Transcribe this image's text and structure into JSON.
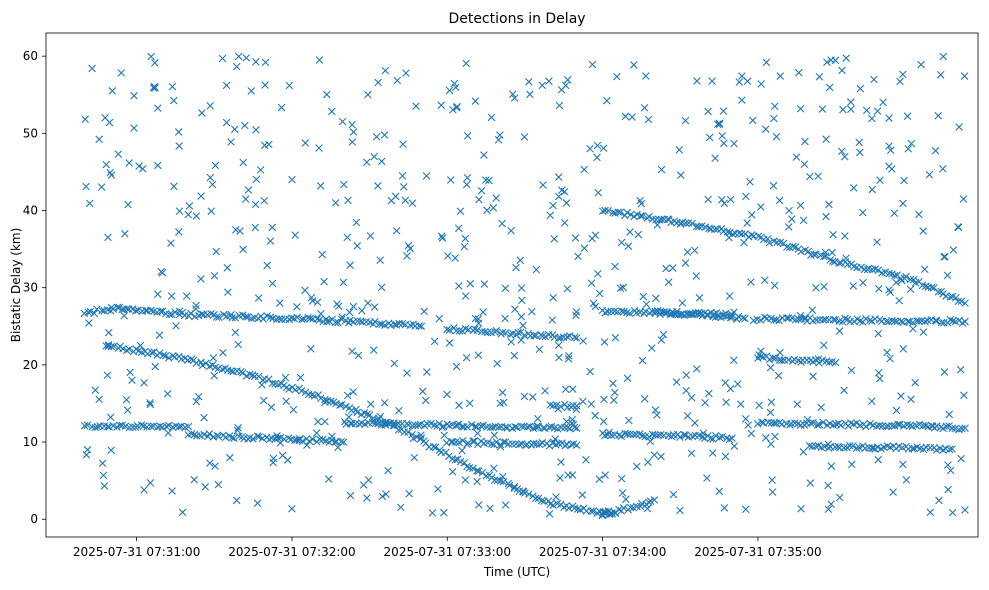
{
  "chart_data": {
    "type": "scatter",
    "title": "Detections in Delay",
    "xlabel": "Time (UTC)",
    "ylabel": "Bistatic Delay (km)",
    "marker": "x",
    "color": "#1f77b4",
    "grid": false,
    "xlim": [
      "07:30:25",
      "07:36:25"
    ],
    "ylim": [
      -2.3,
      63
    ],
    "x_ticks": [
      {
        "t": "07:31:00",
        "label": "2025-07-31 07:31:00"
      },
      {
        "t": "07:32:00",
        "label": "2025-07-31 07:32:00"
      },
      {
        "t": "07:33:00",
        "label": "2025-07-31 07:33:00"
      },
      {
        "t": "07:34:00",
        "label": "2025-07-31 07:34:00"
      },
      {
        "t": "07:35:00",
        "label": "2025-07-31 07:35:00"
      }
    ],
    "y_ticks": [
      0,
      10,
      20,
      30,
      40,
      50,
      60
    ],
    "tracks": [
      {
        "points": [
          [
            "07:30:40",
            26.5
          ],
          [
            "07:30:45",
            27.0
          ],
          [
            "07:30:50",
            27.0
          ]
        ]
      },
      {
        "points": [
          [
            "07:30:48",
            22.5
          ],
          [
            "07:31:15",
            21.0
          ],
          [
            "07:31:40",
            19.0
          ],
          [
            "07:32:10",
            16.0
          ],
          [
            "07:32:40",
            12.0
          ],
          [
            "07:33:10",
            6.5
          ],
          [
            "07:33:40",
            2.0
          ],
          [
            "07:34:00",
            0.8
          ],
          [
            "07:34:05",
            0.8
          ]
        ]
      },
      {
        "points": [
          [
            "07:34:00",
            0.8
          ],
          [
            "07:34:05",
            0.8
          ]
        ]
      },
      {
        "points": [
          [
            "07:34:00",
            0.7
          ],
          [
            "07:34:12",
            1.5
          ],
          [
            "07:34:20",
            2.5
          ]
        ]
      },
      {
        "points": [
          [
            "07:30:50",
            27.5
          ],
          [
            "07:31:20",
            26.5
          ],
          [
            "07:32:00",
            26.0
          ],
          [
            "07:32:30",
            25.5
          ],
          [
            "07:32:50",
            25.0
          ]
        ]
      },
      {
        "points": [
          [
            "07:33:00",
            24.7
          ],
          [
            "07:33:30",
            24.0
          ],
          [
            "07:33:50",
            23.5
          ]
        ]
      },
      {
        "points": [
          [
            "07:34:00",
            40.0
          ],
          [
            "07:34:30",
            38.5
          ],
          [
            "07:35:00",
            36.5
          ],
          [
            "07:35:30",
            33.5
          ],
          [
            "07:36:00",
            31.0
          ],
          [
            "07:36:20",
            28.0
          ]
        ]
      },
      {
        "points": [
          [
            "07:34:00",
            27.0
          ],
          [
            "07:34:30",
            26.7
          ],
          [
            "07:34:50",
            26.5
          ]
        ]
      },
      {
        "points": [
          [
            "07:35:00",
            26.0
          ],
          [
            "07:35:30",
            25.8
          ],
          [
            "07:36:00",
            25.7
          ],
          [
            "07:36:20",
            25.6
          ]
        ]
      },
      {
        "points": [
          [
            "07:35:00",
            21.0
          ],
          [
            "07:35:20",
            20.5
          ],
          [
            "07:35:30",
            20.3
          ]
        ]
      },
      {
        "points": [
          [
            "07:30:40",
            12.0
          ],
          [
            "07:31:20",
            12.0
          ]
        ]
      },
      {
        "points": [
          [
            "07:31:20",
            11.0
          ],
          [
            "07:31:50",
            10.5
          ],
          [
            "07:32:20",
            10.0
          ]
        ]
      },
      {
        "points": [
          [
            "07:32:20",
            12.5
          ],
          [
            "07:32:50",
            12.3
          ],
          [
            "07:33:20",
            12.0
          ],
          [
            "07:33:50",
            11.8
          ]
        ]
      },
      {
        "points": [
          [
            "07:34:00",
            11.0
          ],
          [
            "07:34:30",
            10.8
          ],
          [
            "07:34:50",
            10.5
          ]
        ]
      },
      {
        "points": [
          [
            "07:35:00",
            12.5
          ],
          [
            "07:35:30",
            12.3
          ],
          [
            "07:36:00",
            12.1
          ],
          [
            "07:36:20",
            11.8
          ]
        ]
      },
      {
        "points": [
          [
            "07:33:00",
            10.0
          ],
          [
            "07:33:30",
            9.8
          ],
          [
            "07:33:50",
            9.6
          ]
        ]
      },
      {
        "points": [
          [
            "07:35:20",
            9.5
          ],
          [
            "07:35:45",
            9.3
          ],
          [
            "07:36:15",
            9.1
          ]
        ]
      },
      {
        "points": [
          [
            "07:33:40",
            14.7
          ],
          [
            "07:33:50",
            14.7
          ]
        ]
      },
      {
        "points": [
          [
            "07:34:20",
            26.8
          ],
          [
            "07:34:40",
            26.5
          ],
          [
            "07:34:55",
            26.0
          ]
        ]
      }
    ],
    "scatter_seed": 7,
    "scatter_count": 720
  }
}
